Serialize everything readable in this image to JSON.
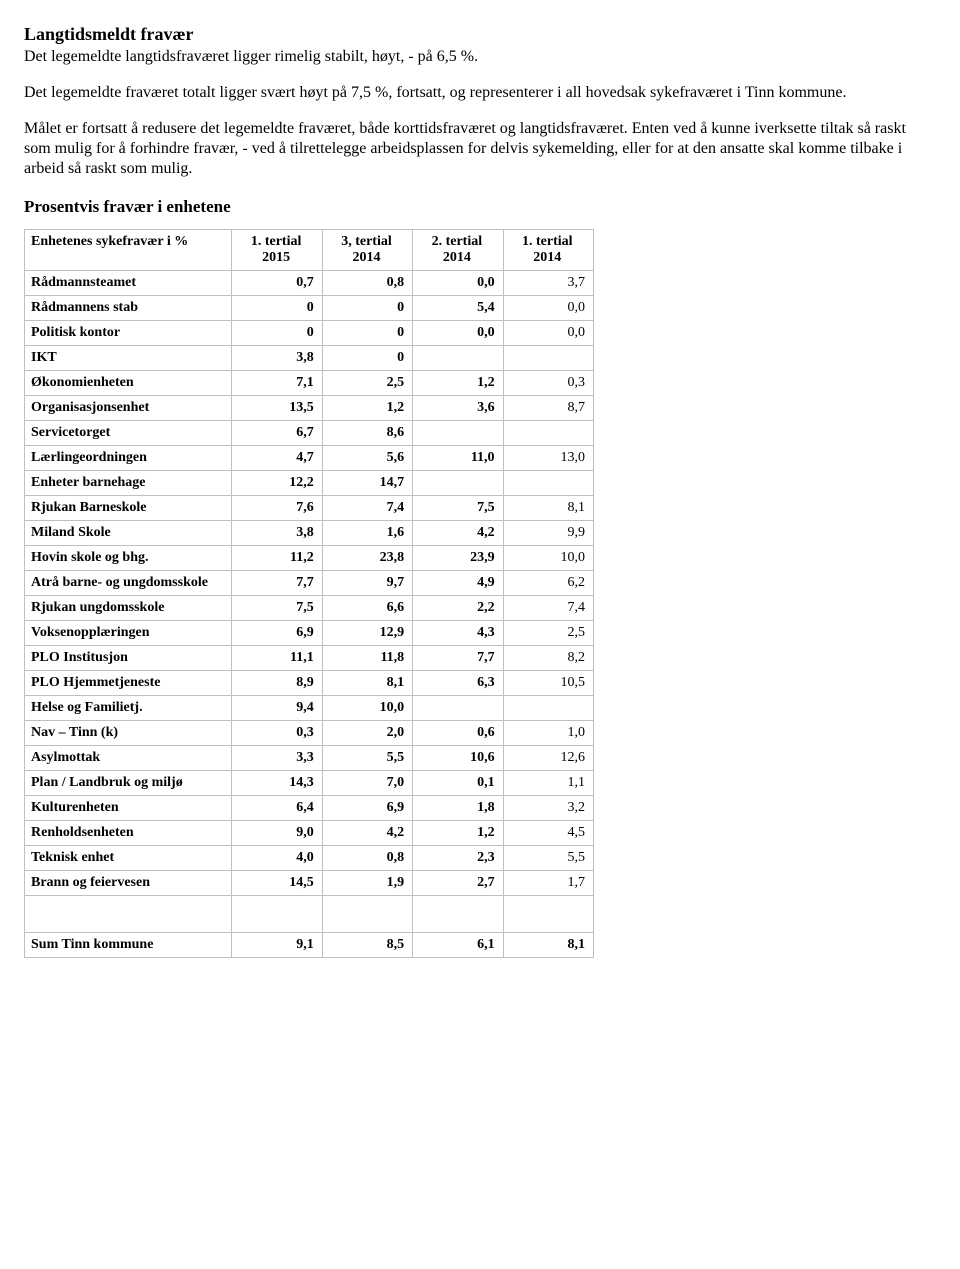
{
  "heading1": "Langtidsmeldt fravær",
  "paragraph1": "Det legemeldte langtidsfraværet ligger rimelig stabilt, høyt, - på 6,5 %.",
  "paragraph2": "Det legemeldte fraværet totalt ligger svært høyt på 7,5 %, fortsatt, og representerer i all hovedsak sykefraværet i Tinn kommune.",
  "paragraph3": "Målet er fortsatt å redusere det legemeldte fraværet, både korttidsfraværet og langtidsfraværet. Enten ved å kunne iverksette tiltak så raskt som mulig for å forhindre fravær, - ved å tilrettelegge arbeidsplassen for delvis sykemelding, eller for at den ansatte skal komme tilbake i arbeid så raskt som mulig.",
  "heading2": "Prosentvis fravær i enhetene",
  "table": {
    "header_label": "Enhetenes sykefravær i %",
    "columns": [
      "1. tertial 2015",
      "3, tertial 2014",
      "2. tertial 2014",
      "1. tertial 2014"
    ],
    "rows": [
      {
        "label": "Rådmannsteamet",
        "v": [
          "0,7",
          "0,8",
          "0,0",
          "3,7"
        ]
      },
      {
        "label": "Rådmannens stab",
        "v": [
          "0",
          "0",
          "5,4",
          "0,0"
        ]
      },
      {
        "label": "Politisk kontor",
        "v": [
          "0",
          "0",
          "0,0",
          "0,0"
        ]
      },
      {
        "label": "IKT",
        "v": [
          "3,8",
          "0",
          "",
          ""
        ]
      },
      {
        "label": "Økonomienheten",
        "v": [
          "7,1",
          "2,5",
          "1,2",
          "0,3"
        ]
      },
      {
        "label": "Organisasjonsenhet",
        "v": [
          "13,5",
          "1,2",
          "3,6",
          "8,7"
        ]
      },
      {
        "label": "Servicetorget",
        "v": [
          "6,7",
          "8,6",
          "",
          ""
        ]
      },
      {
        "label": "Lærlingeordningen",
        "v": [
          "4,7",
          "5,6",
          "11,0",
          "13,0"
        ]
      },
      {
        "label": "Enheter barnehage",
        "v": [
          "12,2",
          "14,7",
          "",
          ""
        ]
      },
      {
        "label": "Rjukan Barneskole",
        "v": [
          "7,6",
          "7,4",
          "7,5",
          "8,1"
        ]
      },
      {
        "label": "Miland Skole",
        "v": [
          "3,8",
          "1,6",
          "4,2",
          "9,9"
        ]
      },
      {
        "label": "Hovin skole og bhg.",
        "v": [
          "11,2",
          "23,8",
          "23,9",
          "10,0"
        ]
      },
      {
        "label": "Atrå barne- og ungdomsskole",
        "v": [
          "7,7",
          "9,7",
          "4,9",
          "6,2"
        ]
      },
      {
        "label": "Rjukan ungdomsskole",
        "v": [
          "7,5",
          "6,6",
          "2,2",
          "7,4"
        ]
      },
      {
        "label": "Voksenopplæringen",
        "v": [
          "6,9",
          "12,9",
          "4,3",
          "2,5"
        ]
      },
      {
        "label": "PLO Institusjon",
        "v": [
          "11,1",
          "11,8",
          "7,7",
          "8,2"
        ]
      },
      {
        "label": "PLO Hjemmetjeneste",
        "v": [
          "8,9",
          "8,1",
          "6,3",
          "10,5"
        ]
      },
      {
        "label": "Helse og Familietj.",
        "v": [
          "9,4",
          "10,0",
          "",
          ""
        ]
      },
      {
        "label": "Nav – Tinn (k)",
        "v": [
          "0,3",
          "2,0",
          "0,6",
          "1,0"
        ]
      },
      {
        "label": "Asylmottak",
        "v": [
          "3,3",
          "5,5",
          "10,6",
          "12,6"
        ]
      },
      {
        "label": "Plan / Landbruk og miljø",
        "v": [
          "14,3",
          "7,0",
          "0,1",
          "1,1"
        ]
      },
      {
        "label": "Kulturenheten",
        "v": [
          "6,4",
          "6,9",
          "1,8",
          "3,2"
        ]
      },
      {
        "label": "Renholdsenheten",
        "v": [
          "9,0",
          "4,2",
          "1,2",
          "4,5"
        ]
      },
      {
        "label": "Teknisk enhet",
        "v": [
          "4,0",
          "0,8",
          "2,3",
          "5,5"
        ]
      },
      {
        "label": "Brann og feiervesen",
        "v": [
          "14,5",
          "1,9",
          "2,7",
          "1,7"
        ]
      }
    ],
    "sum": {
      "label": "Sum Tinn kommune",
      "v": [
        "9,1",
        "8,5",
        "6,1",
        "8,1"
      ]
    }
  }
}
